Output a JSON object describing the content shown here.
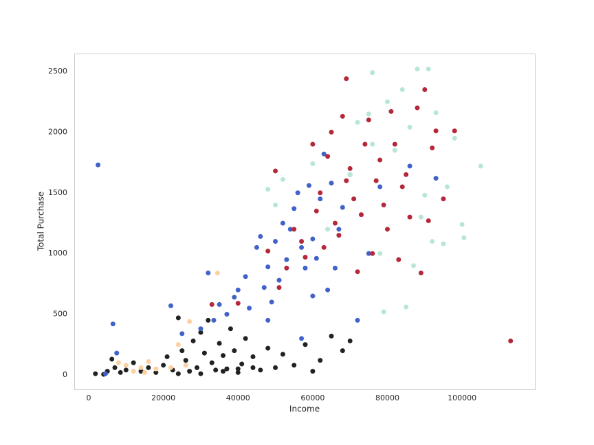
{
  "chart_data": {
    "type": "scatter",
    "x_label": "Income",
    "y_label": "Total Purchase",
    "xlim": [
      -3870,
      119500
    ],
    "ylim": [
      -119,
      2647
    ],
    "xticks": [
      0,
      20000,
      40000,
      60000,
      80000,
      100000
    ],
    "yticks": [
      0,
      500,
      1000,
      1500,
      2000,
      2500
    ],
    "grid": false,
    "series": [
      {
        "color": "#222222",
        "x": [
          1800,
          4000,
          5000,
          6200,
          7000,
          8500,
          10000,
          12000,
          14000,
          16000,
          18000,
          20000,
          21000,
          22500,
          24000,
          25000,
          26000,
          27000,
          28000,
          29000,
          30000,
          31000,
          32000,
          33000,
          34000,
          35000,
          36000,
          37000,
          38000,
          39000,
          40000,
          41000,
          42000,
          44000,
          46000,
          48000,
          50000,
          52000,
          55000,
          58000,
          60000,
          62000,
          65000,
          68000,
          70000,
          30000,
          36000,
          44000,
          24000,
          40000
        ],
        "values": [
          10,
          5,
          30,
          130,
          60,
          20,
          40,
          100,
          30,
          60,
          20,
          80,
          150,
          40,
          470,
          200,
          120,
          30,
          280,
          60,
          350,
          180,
          450,
          100,
          40,
          260,
          160,
          50,
          380,
          200,
          20,
          90,
          300,
          150,
          40,
          220,
          60,
          170,
          80,
          250,
          30,
          120,
          320,
          200,
          280,
          10,
          30,
          60,
          10,
          50
        ]
      },
      {
        "color": "#4062c9",
        "x": [
          2500,
          4500,
          6500,
          7500,
          22000,
          25000,
          30000,
          32000,
          33500,
          35000,
          37000,
          39000,
          40000,
          42000,
          43000,
          45000,
          46000,
          47000,
          48000,
          49000,
          50000,
          51000,
          52000,
          53000,
          54000,
          55000,
          56000,
          57000,
          58000,
          59000,
          60000,
          61000,
          62000,
          63000,
          64000,
          65000,
          66000,
          67000,
          68000,
          70000,
          72000,
          75000,
          78000,
          86000,
          93000,
          57000,
          60000,
          48000
        ],
        "values": [
          1730,
          10,
          420,
          180,
          570,
          340,
          380,
          840,
          450,
          580,
          500,
          640,
          700,
          810,
          550,
          1050,
          1140,
          720,
          890,
          600,
          1100,
          780,
          1250,
          950,
          1200,
          1370,
          1500,
          1050,
          880,
          1560,
          1120,
          960,
          1450,
          1820,
          700,
          1580,
          880,
          1200,
          1380,
          1650,
          450,
          1000,
          1550,
          1720,
          1620,
          300,
          650,
          450
        ]
      },
      {
        "color": "#b5283b",
        "x": [
          33000,
          40000,
          48000,
          50000,
          51000,
          53000,
          55000,
          57000,
          58000,
          60000,
          61000,
          62000,
          63000,
          64000,
          65000,
          66000,
          67000,
          68000,
          69000,
          70000,
          71000,
          72000,
          73000,
          74000,
          75000,
          76000,
          77000,
          78000,
          79000,
          80000,
          81000,
          82000,
          83000,
          84000,
          85000,
          86000,
          88000,
          89000,
          90000,
          91000,
          92000,
          93000,
          95000,
          98000,
          113000,
          69000
        ],
        "values": [
          580,
          590,
          1020,
          1680,
          720,
          880,
          1200,
          1100,
          970,
          1900,
          1350,
          1500,
          1050,
          1800,
          2000,
          1250,
          1150,
          2130,
          2440,
          1700,
          1450,
          850,
          1320,
          1900,
          2100,
          1000,
          1600,
          1770,
          1400,
          1200,
          2170,
          1900,
          950,
          1550,
          1650,
          1300,
          2200,
          840,
          2350,
          1270,
          1870,
          2010,
          1450,
          2010,
          280,
          1600
        ]
      },
      {
        "color": "#b8e6d6",
        "x": [
          48000,
          50000,
          52000,
          60000,
          64000,
          70000,
          72000,
          75000,
          76000,
          78000,
          79000,
          80000,
          82000,
          84000,
          85000,
          86000,
          87000,
          88000,
          90000,
          91000,
          92000,
          93000,
          95000,
          96000,
          98000,
          100000,
          105000,
          100500,
          89000,
          76000
        ],
        "values": [
          1530,
          1400,
          1610,
          1740,
          1200,
          1650,
          2080,
          2150,
          2490,
          1000,
          520,
          2250,
          1850,
          2350,
          560,
          2040,
          900,
          2520,
          1480,
          2520,
          1100,
          2160,
          1080,
          1550,
          1950,
          1240,
          1720,
          1130,
          1300,
          1900
        ]
      },
      {
        "color": "#fdd0a2",
        "x": [
          8000,
          10000,
          12000,
          14000,
          15000,
          16000,
          18000,
          22000,
          24000,
          26000,
          27000,
          34500
        ],
        "values": [
          100,
          80,
          30,
          60,
          20,
          110,
          50,
          60,
          250,
          80,
          440,
          840
        ]
      }
    ]
  }
}
